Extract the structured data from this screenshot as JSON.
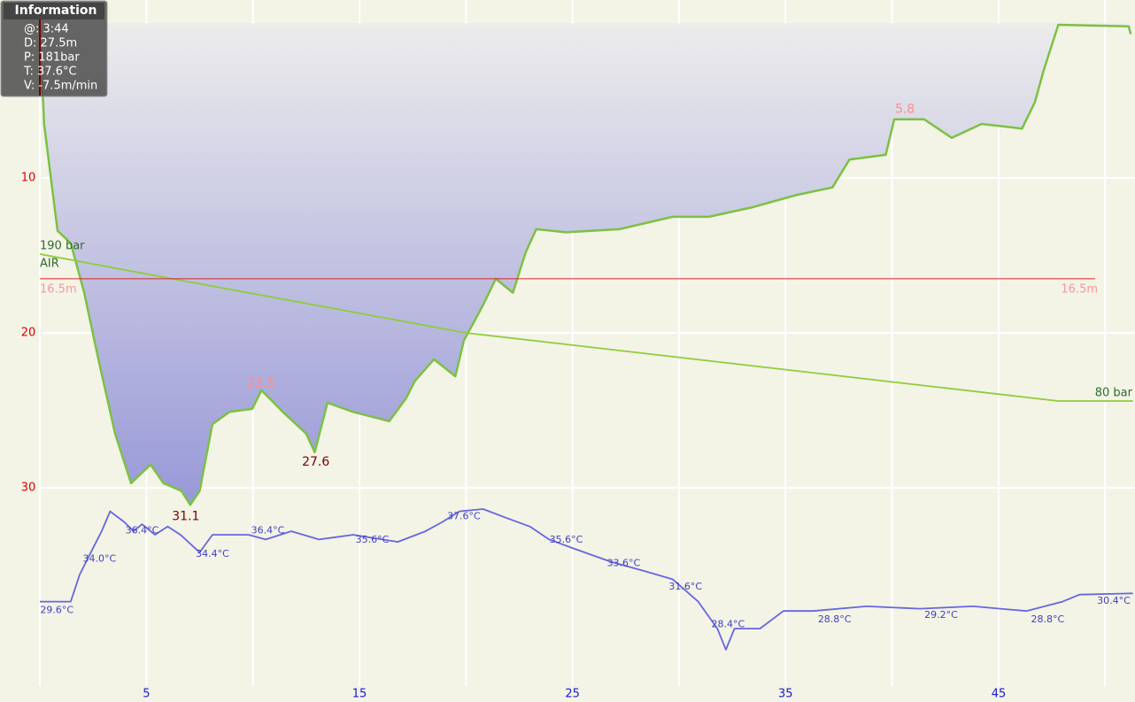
{
  "chart_data": {
    "type": "line",
    "xlim": [
      0,
      51.4
    ],
    "xticks": [
      5,
      15,
      25,
      35,
      45
    ],
    "xgrid": [
      0,
      10,
      20,
      30,
      40,
      50
    ],
    "ylim": [
      -1.5,
      42.8
    ],
    "yticks": [
      10,
      20,
      30
    ],
    "inverted": true,
    "grid": true,
    "y2lim": [
      22.4,
      80.9
    ],
    "y3lim": [
      -133.4,
      380.2
    ],
    "series": [
      {
        "color": "#7cc142",
        "fill": true,
        "x": [
          0,
          0.2,
          0.83,
          1.45,
          2.08,
          2.7,
          3.53,
          4.28,
          5.2,
          5.8,
          6.65,
          7.06,
          7.5,
          8.1,
          8.9,
          9.97,
          10.4,
          11.4,
          12.5,
          12.9,
          13.5,
          14.7,
          16.4,
          17.2,
          17.6,
          18.5,
          19.5,
          19.9,
          20.8,
          21.4,
          22.2,
          22.8,
          23.3,
          24.7,
          27.2,
          29.7,
          31.4,
          33.4,
          35.5,
          37.2,
          38,
          39.7,
          40.1,
          41.5,
          42.8,
          44.2,
          46.1,
          46.7,
          47.1,
          47.8,
          51.1,
          51.2
        ],
        "values": [
          0,
          6.5,
          13.4,
          14.2,
          17.4,
          21.4,
          26.5,
          29.7,
          28.5,
          29.7,
          30.2,
          31.1,
          30.2,
          25.9,
          25.1,
          24.9,
          23.7,
          25.1,
          26.5,
          27.7,
          24.5,
          25.1,
          25.7,
          24.2,
          23.1,
          21.7,
          22.8,
          20.5,
          18.2,
          16.5,
          17.4,
          14.8,
          13.3,
          13.5,
          13.3,
          12.5,
          12.5,
          11.9,
          11.1,
          10.6,
          8.8,
          8.5,
          6.2,
          6.2,
          7.4,
          6.5,
          6.8,
          5.1,
          3.1,
          0.1,
          0.2,
          0.7
        ]
      },
      {
        "color": "#6666dd",
        "axis": "y2",
        "x": [
          0,
          1.45,
          1.87,
          2.28,
          2.9,
          3.3,
          3.95,
          4.4,
          4.8,
          5.4,
          6.0,
          6.6,
          7.5,
          8.1,
          9.8,
          10.6,
          11.8,
          13.1,
          14.7,
          16.8,
          18.1,
          18.9,
          19.7,
          20.8,
          21.8,
          23.0,
          23.9,
          25.1,
          26.8,
          28.4,
          29.7,
          30.9,
          31.8,
          32.2,
          32.6,
          33.8,
          34.9,
          36.3,
          38.8,
          41.3,
          43.8,
          46.3,
          48.0,
          48.8,
          51.3
        ],
        "values": [
          29.6,
          29.6,
          31.9,
          33.4,
          35.6,
          37.3,
          36.4,
          35.6,
          36.2,
          35.3,
          36.0,
          35.3,
          33.8,
          35.3,
          35.3,
          34.9,
          35.6,
          34.9,
          35.3,
          34.7,
          35.6,
          36.4,
          37.3,
          37.5,
          36.8,
          36.0,
          34.9,
          34.1,
          33.0,
          32.2,
          31.5,
          29.6,
          27.3,
          25.5,
          27.3,
          27.3,
          28.8,
          28.8,
          29.2,
          29.0,
          29.2,
          28.8,
          29.6,
          30.2,
          30.3
        ]
      },
      {
        "color": "#8fcc3a",
        "axis": "y3",
        "x": [
          0,
          6.4,
          20,
          47.8,
          51.3
        ],
        "values": [
          190,
          171,
          131,
          80,
          80
        ]
      }
    ],
    "depth_labels": [
      {
        "x": 6.85,
        "value": 31.1,
        "position": "below",
        "color": "#7a0000"
      },
      {
        "x": 12.95,
        "value": 27.6,
        "position": "below",
        "color": "#7a0000"
      },
      {
        "x": 10.37,
        "value": 23.5,
        "position": "above",
        "color": "#ff8c8c"
      },
      {
        "x": 40.6,
        "value": 5.8,
        "position": "above",
        "color": "#ff8c8c"
      }
    ],
    "temperature_labels": [
      {
        "x": 0.8,
        "value": 29.6,
        "label": "29.6°C"
      },
      {
        "x": 2.8,
        "value": 34.0,
        "label": "34.0°C"
      },
      {
        "x": 4.8,
        "value": 36.4,
        "label": "36.4°C"
      },
      {
        "x": 8.1,
        "value": 34.4,
        "label": "34.4°C"
      },
      {
        "x": 10.7,
        "value": 36.4,
        "label": "36.4°C"
      },
      {
        "x": 15.6,
        "value": 35.6,
        "label": "35.6°C"
      },
      {
        "x": 19.9,
        "value": 37.6,
        "label": "37.6°C"
      },
      {
        "x": 24.7,
        "value": 35.6,
        "label": "35.6°C"
      },
      {
        "x": 27.4,
        "value": 33.6,
        "label": "33.6°C"
      },
      {
        "x": 30.3,
        "value": 31.6,
        "label": "31.6°C"
      },
      {
        "x": 32.3,
        "value": 28.4,
        "label": "28.4°C"
      },
      {
        "x": 37.3,
        "value": 28.8,
        "label": "28.8°C"
      },
      {
        "x": 42.3,
        "value": 29.2,
        "label": "29.2°C"
      },
      {
        "x": 47.3,
        "value": 28.8,
        "label": "28.8°C"
      },
      {
        "x": 50.4,
        "value": 30.4,
        "label": "30.4°C"
      }
    ],
    "pressure_labels": {
      "start": {
        "value": 190,
        "label": "190 bar"
      },
      "gas": "AIR",
      "end": {
        "value": 80,
        "label": "80 bar"
      }
    },
    "ceiling": {
      "value": 16.5,
      "label": "16.5m",
      "color": "#dd2222"
    }
  },
  "info": {
    "title": "Information",
    "lines": [
      "@: 3:44",
      "D: 27.5m",
      "P: 181bar",
      "T: 37.6°C",
      "V: -7.5m/min"
    ]
  }
}
